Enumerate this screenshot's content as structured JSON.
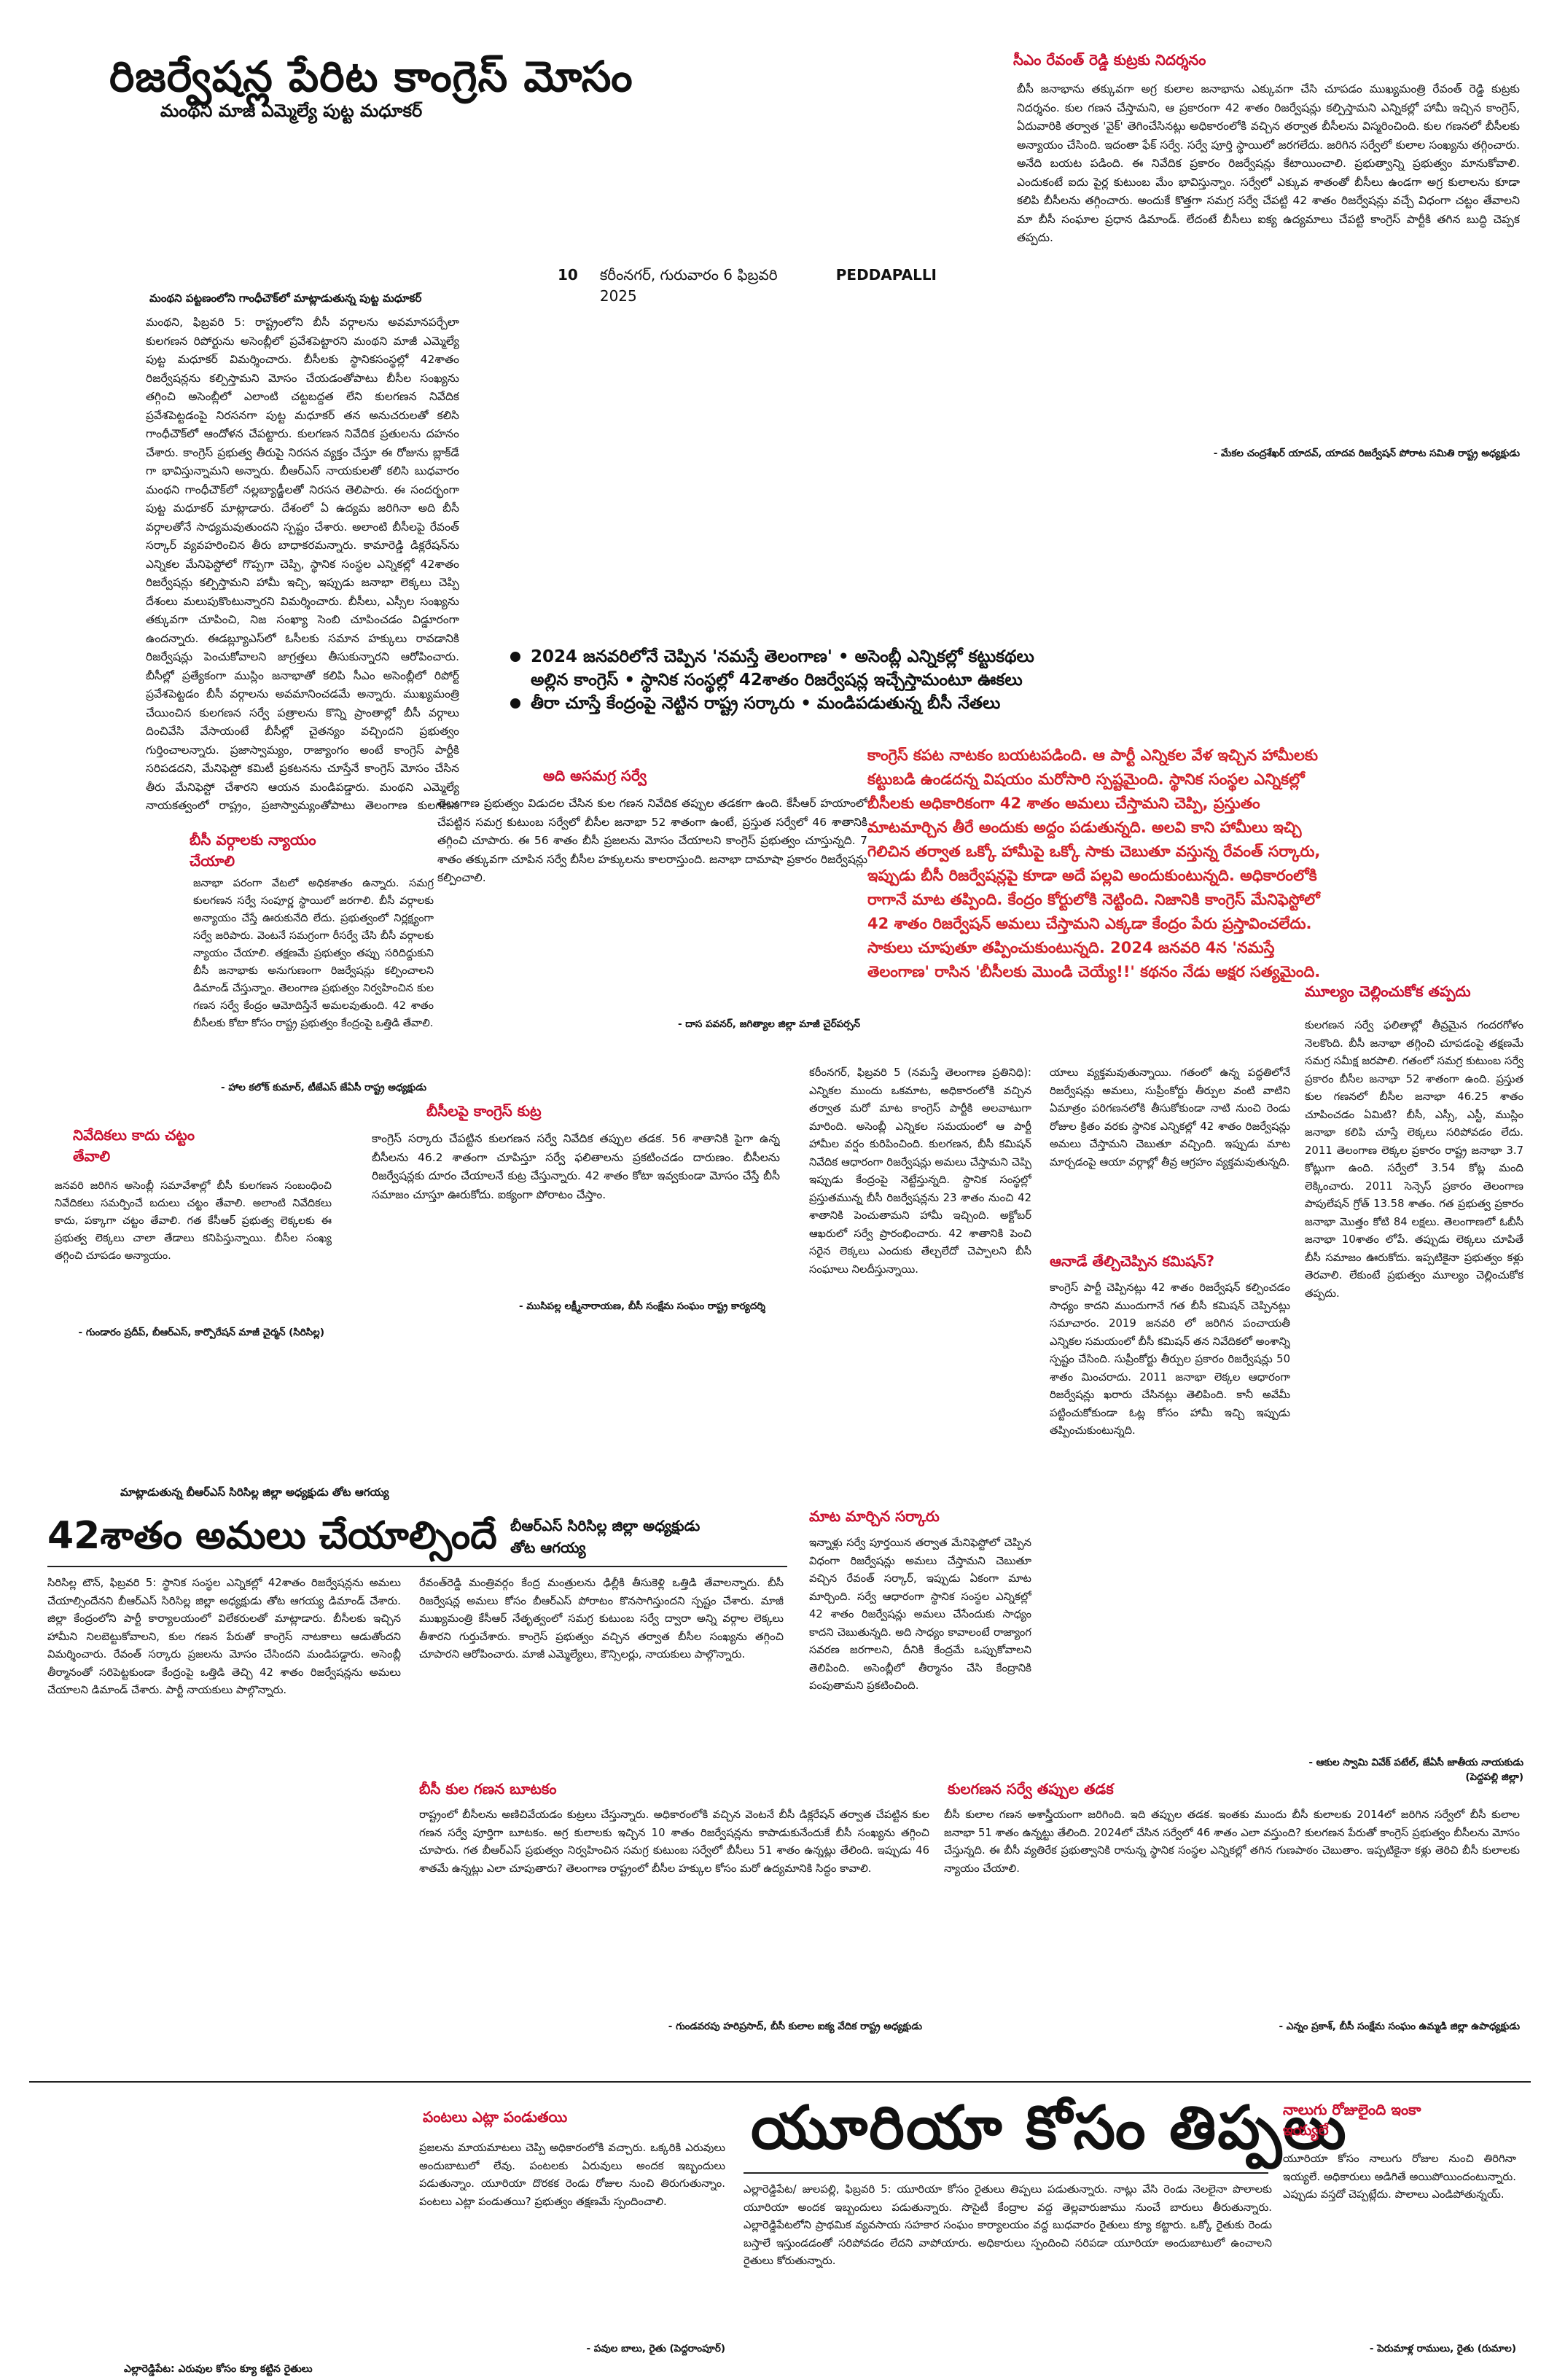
{
  "masthead": {
    "page_no": "10",
    "dateline": "కరీంనగర్, గురువారం 6 ఫిబ్రవరి 2025",
    "edition": "PEDDAPALLI"
  },
  "lead_story": {
    "headline": "రిజర్వేషన్ల పేరిట కాంగ్రెస్ మోసం",
    "subhead": "మంథని మాజీ ఎమ్మెల్యే పుట్ట మధూకర్",
    "kicker": "మంథని పట్టణంలోని గాంధీచౌక్‌లో మాట్లాడుతున్న పుట్ట మధూకర్",
    "body": "మంథని, ఫిబ్రవరి 5: రాష్ట్రంలోని బీసీ వర్గాలను అవమానపర్చేలా కులగణన రిపోర్టును అసెంబ్లీలో ప్రవేశపెట్టారని మంథని మాజీ ఎమ్మెల్యే పుట్ట మధూకర్ విమర్శించారు. బీసీలకు స్థానికసంస్థల్లో 42శాతం రిజర్వేషన్లను కల్పిస్తామని మోసం చేయడంతోపాటు బీసీల సంఖ్యను తగ్గించి అసెంబ్లీలో ఎలాంటి చట్టబద్దత లేని కులగణన నివేదిక ప్రవేశపెట్టడంపై నిరసనగా పుట్ట మధూకర్ తన అనుచరులతో కలిసి గాంధీచౌక్‌లో ఆందోళన చేపట్టారు. కులగణన నివేదిక ప్రతులను దహనం చేశారు. కాంగ్రెస్ ప్రభుత్వ తీరుపై నిరసన వ్యక్తం చేస్తూ ఈ రోజును బ్లాక్‌డే గా భావిస్తున్నామని అన్నారు. బీఆర్ఎస్ నాయకులతో కలిసి బుధవారం మంథని గాంధీచౌక్‌లో నల్లబ్యాడ్జీలతో నిరసన తెలిపారు. ఈ సందర్భంగా పుట్ట మధూకర్ మాట్లాడారు. దేశంలో ఏ ఉద్యమ జరిగినా అది బీసీ వర్గాలతోనే సాధ్యమవుతుందని స్పష్టం చేశారు. అలాంటి బీసీలపై రేవంత్ సర్కార్ వ్యవహరించిన తీరు బాధాకరమన్నారు. కామారెడ్డి డిక్లరేషన్‌ను ఎన్నికల మేనిఫెస్టోలో గొప్పగా చెప్పి, స్థానిక సంస్థల ఎన్నికల్లో 42శాతం రిజర్వేషన్లు కల్పిస్తామని హామీ ఇచ్చి, ఇప్పుడు జనాభా లెక్కలు చెప్పి దేశంలు మలుపుకొంటున్నారని విమర్శించారు. బీసీలు, ఎస్సీల సంఖ్యను తక్కువగా చూపించి, నిజ సంఖ్యా సెంబి చూపించడం విడ్డూరంగా ఉందన్నారు. ఈడబ్ల్యూఎస్‌లో ఓసీలకు సమాన హక్కులు రావడానికి రిజర్వేషన్లు పెంచుకోవాలని జాగ్రత్తలు తీసుకున్నారని ఆరోపించారు. బీసీల్లో ప్రత్యేకంగా ముస్లిం జనాభాతో కలిపి సీఎం అసెంబ్లీలో రిపోర్ట్ ప్రవేశపెట్టడం బీసీ వర్గాలను అవమానించడమే అన్నారు. ముఖ్యమంత్రి చేయించిన కులగణన సర్వే పత్రాలను కొన్ని ప్రాంతాల్లో బీసీ వర్గాలు దించివేసి వేసాయంటే బీసీల్లో చైతన్యం వచ్చిందని ప్రభుత్వం గుర్తించాలన్నారు. ప్రజాస్వామ్యం, రాజ్యాంగం అంటే కాంగ్రెస్ పార్టీకి సరిపడదని, మేనిఫెస్టో కమిటీ ప్రకటనను చూస్తేనే కాంగ్రెస్ మోసం చేసిన తీరు మేనిఫెస్టో చేశారని ఆయన మండిపడ్డారు. మంథని ఎమ్మెల్యే నాయకత్వంలో రాష్ట్రం, ప్రజాస్వామ్యంతోపాటు తెలంగాణ కులగణన కూడా ఖూనీ అయిందని విమర్శించారు. సహా పుట్ట మధూకర్ ఎన్నికలకు వెళ్లాలని ఆలోచిస్తోందని సీఎం అసెంబ్లీ సాక్షిగా గనుల సర్వే పెట్టి ఎత్తిపొడుచుకున్నారని విమర్శించారు. గత బీఆర్ఎస్ ప్రభుత్వం చేసిన సమగ్ర కుటుంబ సర్వేను కూడా వెక్కిరించి సొంతంగా చెప్పుకొంటున్నారన్నారు. రాహుల్ గాంధీ ఎన్ని రాష్ట్రాలు పర్యటనలు చెప్పినా బీసీలకు న్యాయం జరగదని హెచ్చరించారు. కార్యక్రమంలో బీఆర్ఎస్ నాయకులు ఏగోళపు శంకర్‌గౌడ్, కొండ శంకర్‌లాల్, ఆకుల కిరణ్, కుమార్, మాచిడి రాజుగౌడ్, కాయితీ సమ్మయ్య, ఓదెలు తదితరులు పాల్గొన్నారు."
  },
  "box_bc_justice": {
    "title": "బీసీ వర్గాలకు న్యాయం చేయాలి",
    "body": "జనాభా పరంగా వేటలో అధికశాతం ఉన్నారు. సమగ్ర కులగణన సర్వే సంపూర్ణ స్థాయిలో జరగాలి. బీసీ వర్గాలకు అన్యాయం చేస్తే ఊరుకునేది లేదు. ప్రభుత్వంలో నిర్లక్ష్యంగా సర్వే జరిపారు. వెంటనే సమగ్రంగా రీసర్వే చేసి బీసీ వర్గాలకు న్యాయం చేయాలి. తక్షణమే ప్రభుత్వం తప్పు సరిదిద్దుకుని బీసీ జనాభాకు అనుగుణంగా రిజర్వేషన్లు కల్పించాలని డిమాండ్ చేస్తున్నాం. తెలంగాణ ప్రభుత్వం నిర్వహించిన కుల గణన సర్వే కేంద్రం ఆమోదిస్తేనే అమలవుతుంది. 42 శాతం బీసీలకు కోటా కోసం రాష్ట్ర ప్రభుత్వం కేంద్రంపై ఒత్తిడి తేవాలి.",
    "signature": "- హాల కలోక్ కుమార్, టీజేఎస్ జేఏసీ రాష్ట్ర అధ్యక్షుడు"
  },
  "box_report": {
    "title": "నివేదికలు కాదు చట్టం తేవాలి",
    "body": "జనవరి జరిగిన అసెంబ్లీ సమావేశాల్లో బీసీ కులగణన సంబంధించి నివేదికలు సమర్పించే బదులు చట్టం తేవాలి. అలాంటి నివేదికలు కాదు, పక్కాగా చట్టం తేవాలి. గత కేసీఆర్ ప్రభుత్వ లెక్కలకు ఈ ప్రభుత్వ లెక్కలు చాలా తేడాలు కనిపిస్తున్నాయి. బీసీల సంఖ్య తగ్గించి చూపడం అన్యాయం.",
    "signature": "- గుండారం ప్రదీప్, బీఆర్‌ఎస్, కార్పొరేషన్ మాజీ చైర్మన్ (సిరిసిల్ల)"
  },
  "story_42": {
    "kicker": "మాట్లాడుతున్న బీఆర్ఎస్ సిరిసిల్ల జిల్లా అధ్యక్షుడు తోట ఆగయ్య",
    "headline": "42శాతం అమలు చేయాల్సిందే",
    "side_title": "బీఆర్ఎస్ సిరిసిల్ల జిల్లా అధ్యక్షుడు తోట ఆగయ్య",
    "body": "సిరిసిల్ల టౌన్, ఫిబ్రవరి 5: స్థానిక సంస్థల ఎన్నికల్లో 42శాతం రిజర్వేషన్లను అమలు చేయాల్సిందేనని బీఆర్ఎస్ సిరిసిల్ల జిల్లా అధ్యక్షుడు తోట ఆగయ్య డిమాండ్ చేశారు. జిల్లా కేంద్రంలోని పార్టీ కార్యాలయంలో విలేకరులతో మాట్లాడారు. బీసీలకు ఇచ్చిన హామీని నిలబెట్టుకోవాలని, కుల గణన పేరుతో కాంగ్రెస్ నాటకాలు ఆడుతోందని విమర్శించారు. రేవంత్ సర్కారు ప్రజలను మోసం చేసిందని మండిపడ్డారు. అసెంబ్లీ తీర్మానంతో సరిపెట్టకుండా కేంద్రంపై ఒత్తిడి తెచ్చి 42 శాతం రిజర్వేషన్లను అమలు చేయాలని డిమాండ్ చేశారు. పార్టీ నాయకులు పాల్గొన్నారు.",
    "col2": "రేవంత్‌రెడ్డి మంత్రివర్గం కేంద్ర మంత్రులను ఢిల్లీకి తీసుకెళ్లి ఒత్తిడి తేవాలన్నారు. బీసీ రిజర్వేషన్ల అమలు కోసం బీఆర్ఎస్ పోరాటం కొనసాగిస్తుందని స్పష్టం చేశారు. మాజీ ముఖ్యమంత్రి కేసీఆర్ నేతృత్వంలో సమగ్ర కుటుంబ సర్వే ద్వారా అన్ని వర్గాల లెక్కలు తీశారని గుర్తుచేశారు. కాంగ్రెస్ ప్రభుత్వం వచ్చిన తర్వాత బీసీల సంఖ్యను తగ్గించి చూపారని ఆరోపించారు. మాజీ ఎమ్మెల్యేలు, కౌన్సిలర్లు, నాయకులు పాల్గొన్నారు."
  },
  "feature": {
    "bullets": [
      "2024 జనవరిలోనే చెప్పిన 'నమస్తే తెలంగాణ'  • అసెంబ్లీ ఎన్నికల్లో కట్టుకథలు",
      "అల్లిన కాంగ్రెస్   • స్థానిక సంస్థల్లో 42శాతం రిజర్వేషన్ల ఇచ్చేస్తామంటూ ఊకలు",
      "తీరా చూస్తే కేంద్రంపై నెట్టిన రాష్ట్ర సర్కారు   • మండిపడుతున్న బీసీ నేతలు"
    ],
    "red_lead": "కాంగ్రెస్ కపట నాటకం బయటపడింది. ఆ పార్టీ ఎన్నికల వేళ ఇచ్చిన హామీలకు కట్టుబడి ఉండదన్న విషయం మరోసారి స్పష్టమైంది. స్థానిక సంస్థల ఎన్నికల్లో బీసీలకు అధికారికంగా 42 శాతం అమలు చేస్తామని చెప్పి, ప్రస్తుతం మాటమార్చిన తీరే అందుకు అద్దం పడుతున్నది. అలవి కాని హామీలు ఇచ్చి గెలిచిన తర్వాత ఒక్కో హామీపై ఒక్కో సాకు చెబుతూ వస్తున్న రేవంత్ సర్కారు, ఇప్పుడు బీసీ రిజర్వేషన్లపై కూడా అదే పల్లవి అందుకుంటున్నది. అధికారంలోకి రాగానే మాట తప్పింది. కేంద్రం కోర్టులోకి నెట్టింది. నిజానికి కాంగ్రెస్ మేనిఫెస్టోలో 42 శాతం రిజర్వేషన్ అమలు చేస్తామని ఎక్కడా కేంద్రం పేరు ప్రస్తావించలేదు. సాకులు చూపుతూ తప్పించుకుంటున్నది. 2024 జనవరి 4న 'నమస్తే తెలంగాణ' రాసిన 'బీసీలకు మొండి చెయ్యే!!' కథనం నేడు అక్షర సత్యమైంది.",
    "col1_head": "అది అసమగ్ర సర్వే",
    "col1_body": "తెలంగాణ ప్రభుత్వం విడుదల చేసిన కుల గణన నివేదిక తప్పుల తడకగా ఉంది. కేసీఆర్ హయాంలో చేపట్టిన సమగ్ర కుటుంబ సర్వేలో బీసీల జనాభా 52 శాతంగా ఉంటే, ప్రస్తుత సర్వేలో 46 శాతానికి తగ్గించి చూపారు. ఈ 56 శాతం బీసీ ప్రజలను మోసం చేయాలని కాంగ్రెస్ ప్రభుత్వం చూస్తున్నది. 7 శాతం తక్కువగా చూపిన సర్వే బీసీల హక్కులను కాలరాస్తుంది. జనాభా దామాషా ప్రకారం రిజర్వేషన్లు కల్పించాలి.",
    "col1_sig": "- దాస పవనర్, జగిత్యాల జిల్లా మాజీ చైర్‌పర్సన్",
    "col2_head": "బీసీలపై కాంగ్రెస్ కుట్ర",
    "col2_body": "కాంగ్రెస్ సర్కారు చేపట్టిన కులగణన సర్వే నివేదిక తప్పుల తడక. 56 శాతానికి పైగా ఉన్న బీసీలను 46.2 శాతంగా చూపిస్తూ సర్వే ఫలితాలను ప్రకటించడం దారుణం. బీసీలను రిజర్వేషన్లకు దూరం చేయాలనే కుట్ర చేస్తున్నారు. 42 శాతం కోటా ఇవ్వకుండా మోసం చేస్తే బీసీ సమాజం చూస్తూ ఊరుకోదు. ఐక్యంగా పోరాటం చేస్తాం.",
    "col2_sig": "- ముసిపల్ల లక్ష్మీనారాయణ, బీసీ సంక్షేమ సంఘం రాష్ట్ర కార్యదర్శి",
    "col3_body": "కరీంనగర్, ఫిబ్రవరి 5 (నమస్తే తెలంగాణ ప్రతినిధి): ఎన్నికల ముందు ఒకమాట, అధికారంలోకి వచ్చిన తర్వాత మరో మాట కాంగ్రెస్ పార్టీకి అలవాటుగా మారింది. అసెంబ్లీ ఎన్నికల సమయంలో ఆ పార్టీ హామీల వర్షం కురిపించింది. కులగణన, బీసీ కమిషన్ నివేదిక ఆధారంగా రిజర్వేషన్లు అమలు చేస్తామని చెప్పి ఇప్పుడు కేంద్రంపై నెట్టేస్తున్నది. స్థానిక సంస్థల్లో ప్రస్తుతమున్న బీసీ రిజర్వేషన్లను 23 శాతం నుంచి 42 శాతానికి పెంచుతామని హామీ ఇచ్చింది. అక్టోబర్ ఆఖరులో సర్వే ప్రారంభించారు. 42 శాతానికి పెంచి సరైన లెక్కలు ఎందుకు తేల్చలేదో చెప్పాలని బీసీ సంఘాలు నిలదీస్తున్నాయి.",
    "col3_head": "మాట మార్చిన సర్కారు",
    "col3_body2": "ఇన్నాళ్లు సర్వే పూర్తయిన తర్వాత మేనిఫెస్టోలో చెప్పిన విధంగా రిజర్వేషన్లు అమలు చేస్తామని చెబుతూ వచ్చిన రేవంత్ సర్కార్, ఇప్పుడు ఏకంగా మాట మార్చింది. సర్వే ఆధారంగా స్థానిక సంస్థల ఎన్నికల్లో 42 శాతం రిజర్వేషన్లు అమలు చేసేందుకు సాధ్యం కాదని చెబుతున్నది. అది సాధ్యం కావాలంటే రాజ్యాంగ సవరణ జరగాలని, దీనికి కేంద్రమే ఒప్పుకోవాలని తెలిపింది. అసెంబ్లీలో తీర్మానం చేసి కేంద్రానికి పంపుతామని ప్రకటించింది.",
    "col4_body": "యాలు వ్యక్తమవుతున్నాయి. గతంలో ఉన్న పద్ధతిలోనే రిజర్వేషన్లు అమలు, సుప్రీంకోర్టు తీర్పుల వంటి వాటిని ఏమాత్రం పరిగణనలోకి తీసుకోకుండా నాటి నుంచి రెండు రోజుల క్రితం వరకు స్థానిక ఎన్నికల్లో 42 శాతం రిజర్వేషన్లు అమలు చేస్తామని చెబుతూ వచ్చింది. ఇప్పుడు మాట మార్చడంపై ఆయా వర్గాల్లో తీవ్ర ఆగ్రహం వ్యక్తమవుతున్నది.",
    "col4_head": "ఆనాడే తేల్చిచెప్పిన కమిషన్?",
    "col4_body2": "కాంగ్రెస్ పార్టీ చెప్పినట్లు 42 శాతం రిజర్వేషన్ కల్పించడం సాధ్యం కాదని ముందుగానే గత బీసీ కమిషన్ చెప్పినట్లు సమాచారం. 2019 జనవరి లో జరిగిన పంచాయతీ ఎన్నికల సమయంలో బీసీ కమిషన్ తన నివేదికలో అంశాన్ని స్పష్టం చేసింది. సుప్రీంకోర్టు తీర్పుల ప్రకారం రిజర్వేషన్లు 50 శాతం మించరాదు. 2011 జనాభా లెక్కల ఆధారంగా రిజర్వేషన్లు ఖరారు చేసినట్లు తెలిపింది. కానీ అవేమీ పట్టించుకోకుండా ఓట్ల కోసం హామీ ఇచ్చి ఇప్పుడు తప్పించుకుంటున్నది.",
    "col5_head": "మూల్యం చెల్లించుకోక తప్పదు",
    "col5_body": "కులగణన సర్వే ఫలితాల్లో తీవ్రమైన గందరగోళం నెలకొంది. బీసీ జనాభా తగ్గించి చూపడంపై తక్షణమే సమగ్ర సమీక్ష జరపాలి. గతంలో సమగ్ర కుటుంబ సర్వే ప్రకారం బీసీల జనాభా 52 శాతంగా ఉంది. ప్రస్తుత కుల గణనలో బీసీల జనాభా 46.25 శాతం చూపించడం ఏమిటి? బీసీ, ఎస్సీ, ఎస్టీ, ముస్లిం జనాభా కలిపి చూస్తే లెక్కలు సరిపోవడం లేదు. 2011 తెలంగాణ లెక్కల ప్రకారం రాష్ట్ర జనాభా 3.7 కోట్లుగా ఉంది. సర్వేలో 3.54 కోట్ల మంది లెక్కించారు. 2011 సెన్సెస్ ప్రకారం తెలంగాణ పాపులేషన్ గ్రోత్ 13.58 శాతం. గత ప్రభుత్వ ప్రకారం జనాభా మొత్తం కోటి 84 లక్షలు. తెలంగాణలో ఓబీసీ జనాభా 10శాతం లోపే. తప్పుడు లెక్కలు చూపితే బీసీ సమాజం ఊరుకోదు. ఇప్పటికైనా ప్రభుత్వం కళ్లు తెరవాలి. లేకుంటే ప్రభుత్వం మూల్యం చెల్లించుకోక తప్పదు.",
    "col5_sig": "- ఆకుల స్వామి వివేక్ పటేల్, జేఏసీ జాతీయ నాయకుడు (పెద్దపల్లి జిల్లా)",
    "side_head": "సీఎం రేవంత్ రెడ్డి కుట్రకు నిదర్శనం",
    "side_body": "బీసీ జనాభాను తక్కువగా అగ్ర కులాల జనాభాను ఎక్కువగా చేసి చూపడం ముఖ్యమంత్రి రేవంత్ రెడ్డి కుట్రకు నిదర్శనం. కుల గణన చేస్తామని, ఆ ప్రకారంగా 42 శాతం రిజర్వేషన్లు కల్పిస్తామని ఎన్నికల్లో హామీ ఇచ్చిన కాంగ్రెస్, ఏదువారికి తర్వాత 'వైక్' తెగించేసినట్లు అధికారంలోకి వచ్చిన తర్వాత బీసీలను విస్మరించింది. కుల గణనలో బీసీలకు అన్యాయం చేసింది. ఇదంతా ఫేక్ సర్వే. సర్వే పూర్తి స్థాయిలో జరగలేదు. జరిగిన సర్వేలో కులాల సంఖ్యను తగ్గించారు. అనేది బయట పడింది. ఈ నివేదిక ప్రకారం రిజర్వేషన్లు కేటాయించాలి. ప్రభుత్వాన్ని ప్రభుత్వం మానుకోవాలి. ఎందుకంటే ఐదు పైర్ల కుటుంబ మేం భావిస్తున్నాం. సర్వేలో ఎక్కువ శాతంతో బీసీలు ఉండగా అగ్ర కులాలను కూడా కలిపి బీసీలను తగ్గించారు. అందుకే కొత్తగా సమగ్ర సర్వే చేపట్టి 42 శాతం రిజర్వేషన్లు వచ్చే విధంగా చట్టం తేవాలని మా బీసీ సంఘాల ప్రధాన డిమాండ్. లేదంటే బీసీలు ఐక్య ఉద్యమాలు చేపట్టి కాంగ్రెస్ పార్టీకి తగిన బుద్ధి చెప్పక తప్పదు.",
    "side_sig": "- మేకల చంద్రశేఖర్ యాదవ్, యాదవ రిజర్వేషన్ పోరాట సమితి రాష్ట్ర అధ్యక్షుడు"
  },
  "strip_row": {
    "col1_head": "బీసీ కుల గణన బూటకం",
    "col1_body": "రాష్ట్రంలో బీసీలను అణిచివేయడం కుట్రలు చేస్తున్నారు. అధికారంలోకి వచ్చిన వెంటనే బీసీ డిక్లరేషన్ తర్వాత చేపట్టిన కుల గణన సర్వే పూర్తిగా బూటకం. అగ్ర కులాలకు ఇచ్చిన 10 శాతం రిజర్వేషన్లను కాపాడుకునేందుకే బీసీ సంఖ్యను తగ్గించి చూపారు. గత బీఆర్ఎస్ ప్రభుత్వం నిర్వహించిన సమగ్ర కుటుంబ సర్వేలో బీసీలు 51 శాతం ఉన్నట్లు తేలింది. ఇప్పుడు 46 శాతమే ఉన్నట్లు ఎలా చూపుతారు? తెలంగాణ రాష్ట్రంలో బీసీల హక్కుల కోసం మరో ఉద్యమానికి సిద్ధం కావాలి.",
    "col1_sig": "- గుండవరపు హరిప్రసాద్, బీసీ కులాల ఐక్య వేదిక రాష్ట్ర అధ్యక్షుడు",
    "col2_head": "కులగణన సర్వే తప్పుల తడక",
    "col2_body": "బీసీ కులాల గణన అశాస్త్రీయంగా జరిగింది. ఇది తప్పుల తడక. ఇంతకు ముందు బీసీ కులాలకు 2014లో జరిగిన సర్వేలో బీసీ కులాల జనాభా 51 శాతం ఉన్నట్టు తేలింది. 2024లో చేసిన సర్వేలో 46 శాతం ఎలా వస్తుంది? కులగణన పేరుతో కాంగ్రెస్ ప్రభుత్వం బీసీలను మోసం చేస్తున్నది. ఈ బీసీ వ్యతిరేక ప్రభుత్వానికి రానున్న స్థానిక సంస్థల ఎన్నికల్లో తగిన గుణపాఠం చెబుతాం. ఇప్పటికైనా కళ్లు తెరిచి బీసీ కులాలకు న్యాయం చేయాలి.",
    "col2_sig": "- ఎన్నం ప్రకాశ్, బీసీ సంక్షేమ సంఘం ఉమ్మడి జిల్లా ఉపాధ్యక్షుడు"
  },
  "bottom": {
    "crops_head": "పంటలు ఎట్లా పండుతయి",
    "crops_body": "ప్రజలను మాయమాటలు చెప్పి అధికారంలోకి వచ్చారు. ఒక్కరికి ఎరువులు అందుబాటులో లేవు. పంటలకు ఏరువులు అందక ఇబ్బందులు పడుతున్నాం. యూరియా దొరకక రెండు రోజుల నుంచి తిరుగుతున్నాం. పంటలు ఎట్లా పండుతయి? ప్రభుత్వం తక్షణమే స్పందించాలి.",
    "crops_sig": "- పవుల బాలు, రైతు (పెద్దరాంపూర్)",
    "crops_caption": "ఎల్లారెడ్డిపేట: ఎరువుల కోసం క్యూ కట్టిన రైతులు",
    "urea_headline": "యూరియా కోసం తిప్పలు",
    "urea_body": "ఎల్లారెడ్డిపేట/ జులపల్లి, ఫిబ్రవరి 5: యూరియా కోసం రైతులు తిప్పలు పడుతున్నారు. నాట్లు వేసి రెండు నెలలైనా పొలాలకు యూరియా అందక ఇబ్బందులు పడుతున్నారు. సొసైటీ కేంద్రాల వద్ద తెల్లవారుజాము నుంచే బారులు తీరుతున్నారు. ఎల్లారెడ్డిపేటలోని ప్రాథమిక వ్యవసాయ సహకార సంఘం కార్యాలయం వద్ద బుధవారం రైతులు క్యూ కట్టారు. ఒక్కో రైతుకు రెండు బస్తాలే ఇస్తుండడంతో సరిపోవడం లేదని వాపోయారు. అధికారులు స్పందించి సరిపడా యూరియా అందుబాటులో ఉంచాలని రైతులు కోరుతున్నారు.",
    "side_head": "నాలుగు రోజులైంది ఇంకా ఇయ్యలే",
    "side_body": "యూరియా కోసం నాలుగు రోజుల నుంచి తిరిగినా ఇయ్యలే. అధికారులు అడిగితే అయిపోయిందంటున్నారు. ఎప్పుడు వస్తదో చెప్పట్లేదు. పొలాలు ఎండిపోతున్నయ్.",
    "side_sig": "- పెరుమాళ్ల రాములు, రైతు (రుమాల)"
  }
}
